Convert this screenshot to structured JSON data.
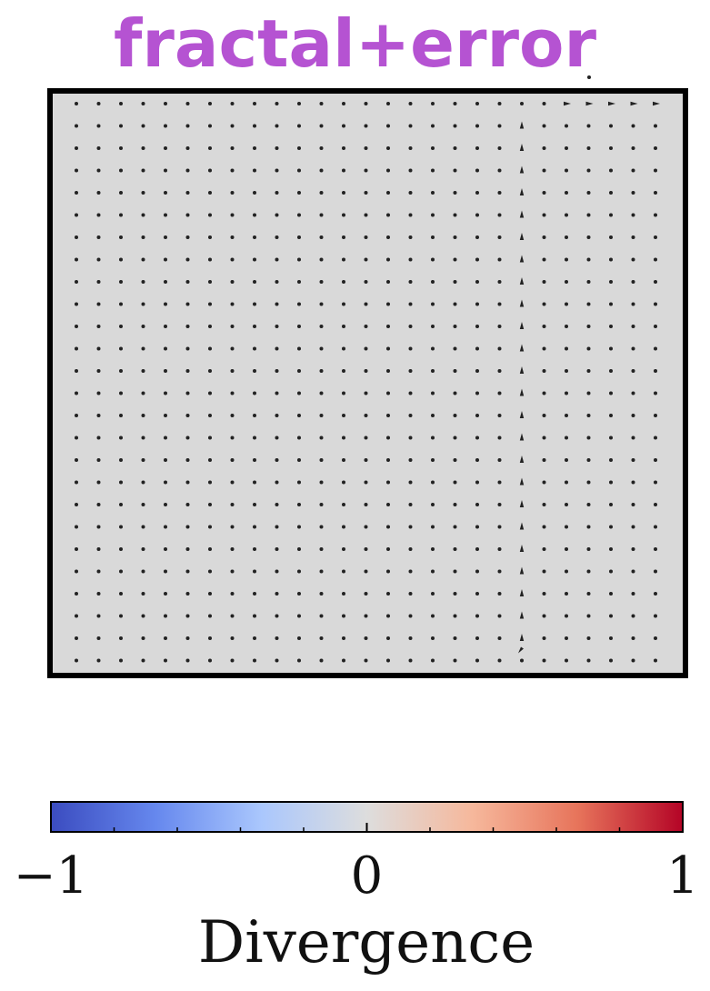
{
  "title": "fractal+error",
  "colors": {
    "title": "#b553d2",
    "field_background": "#d9d9d9",
    "arrow": "#222222",
    "frame": "#000000"
  },
  "chart_data": [
    {
      "type": "vector_field",
      "title": "fractal+error",
      "grid": {
        "rows": 26,
        "cols": 27
      },
      "background_divergence": 0.0,
      "vectors_note": "near-zero vectors (dots) everywhere except a vertical column of small upward arrows near x-index 20 and a short rightward run in the top-right",
      "active_column_index": 20,
      "top_row_rightward_cols": [
        22,
        23,
        24,
        25,
        26
      ]
    },
    {
      "type": "colorbar",
      "colormap": "coolwarm",
      "label": "Divergence",
      "range": [
        -1,
        1
      ],
      "tick_labels": [
        "−1",
        "0",
        "1"
      ],
      "tick_values": [
        -1,
        0,
        1
      ],
      "minor_tick_values": [
        -0.8,
        -0.6,
        -0.4,
        -0.2,
        0.2,
        0.4,
        0.6,
        0.8
      ],
      "color_stops": [
        "#3b4cc0",
        "#6688ee",
        "#aac7fd",
        "#dddddd",
        "#f6b89c",
        "#e7745b",
        "#b40426"
      ]
    }
  ]
}
